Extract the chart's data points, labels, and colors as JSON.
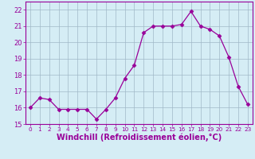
{
  "x": [
    0,
    1,
    2,
    3,
    4,
    5,
    6,
    7,
    8,
    9,
    10,
    11,
    12,
    13,
    14,
    15,
    16,
    17,
    18,
    19,
    20,
    21,
    22,
    23
  ],
  "y": [
    16.0,
    16.6,
    16.5,
    15.9,
    15.9,
    15.9,
    15.9,
    15.3,
    15.9,
    16.6,
    17.8,
    18.6,
    20.6,
    21.0,
    21.0,
    21.0,
    21.1,
    21.9,
    21.0,
    20.8,
    20.4,
    19.1,
    17.3,
    16.2
  ],
  "line_color": "#990099",
  "marker": "D",
  "marker_size": 2.5,
  "bg_color": "#d5edf5",
  "grid_color": "#a0b8c8",
  "xlabel": "Windchill (Refroidissement éolien,°C)",
  "xlim": [
    -0.5,
    23.5
  ],
  "ylim": [
    15.0,
    22.5
  ],
  "yticks": [
    15,
    16,
    17,
    18,
    19,
    20,
    21,
    22
  ],
  "xticks": [
    0,
    1,
    2,
    3,
    4,
    5,
    6,
    7,
    8,
    9,
    10,
    11,
    12,
    13,
    14,
    15,
    16,
    17,
    18,
    19,
    20,
    21,
    22,
    23
  ],
  "tick_fontsize": 6,
  "xlabel_fontsize": 7,
  "tick_color": "#990099",
  "label_color": "#990099",
  "spine_color": "#990099"
}
